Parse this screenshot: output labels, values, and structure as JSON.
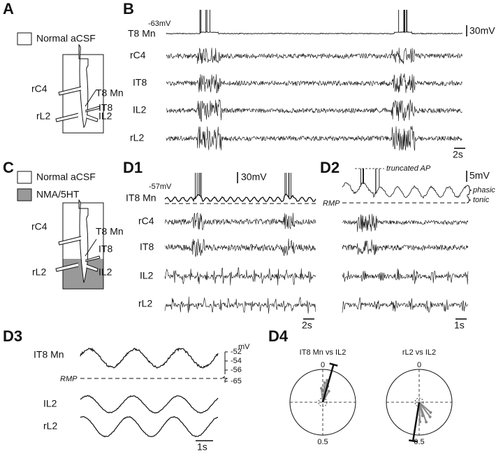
{
  "panel_a": {
    "label": "A",
    "legend": "Normal aCSF",
    "electrodes": [
      "rC4",
      "T8 Mn",
      "IT8",
      "rL2",
      "IL2"
    ]
  },
  "panel_b": {
    "label": "B",
    "potential": "-63mV",
    "scale_v": "30mV",
    "scale_t": "2s",
    "traces": [
      "T8 Mn",
      "rC4",
      "IT8",
      "IL2",
      "rL2"
    ]
  },
  "panel_c": {
    "label": "C",
    "legend": [
      "Normal aCSF",
      "NMA/5HT"
    ],
    "electrodes": [
      "rC4",
      "T8 Mn",
      "IT8",
      "rL2",
      "IL2"
    ]
  },
  "panel_d1": {
    "label": "D1",
    "potential": "-57mV",
    "scale_v": "30mV",
    "scale_t": "2s",
    "traces": [
      "IT8 Mn",
      "rC4",
      "IT8",
      "IL2",
      "rL2"
    ]
  },
  "panel_d2": {
    "label": "D2",
    "truncated": "truncated AP",
    "scale_v": "5mV",
    "phasic": "phasic",
    "tonic": "tonic",
    "rmp": "RMP",
    "scale_t": "1s"
  },
  "panel_d3": {
    "label": "D3",
    "traces": [
      "IT8 Mn",
      "IL2",
      "rL2"
    ],
    "unit": "mV",
    "ticks": [
      "-52",
      "-54",
      "-56",
      "-65"
    ],
    "rmp": "RMP",
    "scale_t": "1s"
  },
  "panel_d4": {
    "label": "D4",
    "plots": [
      {
        "title": "IT8 Mn vs IL2",
        "top": "0",
        "bottom": "0.5"
      },
      {
        "title": "rL2 vs IL2",
        "top": "0",
        "bottom": "0.5"
      }
    ]
  }
}
